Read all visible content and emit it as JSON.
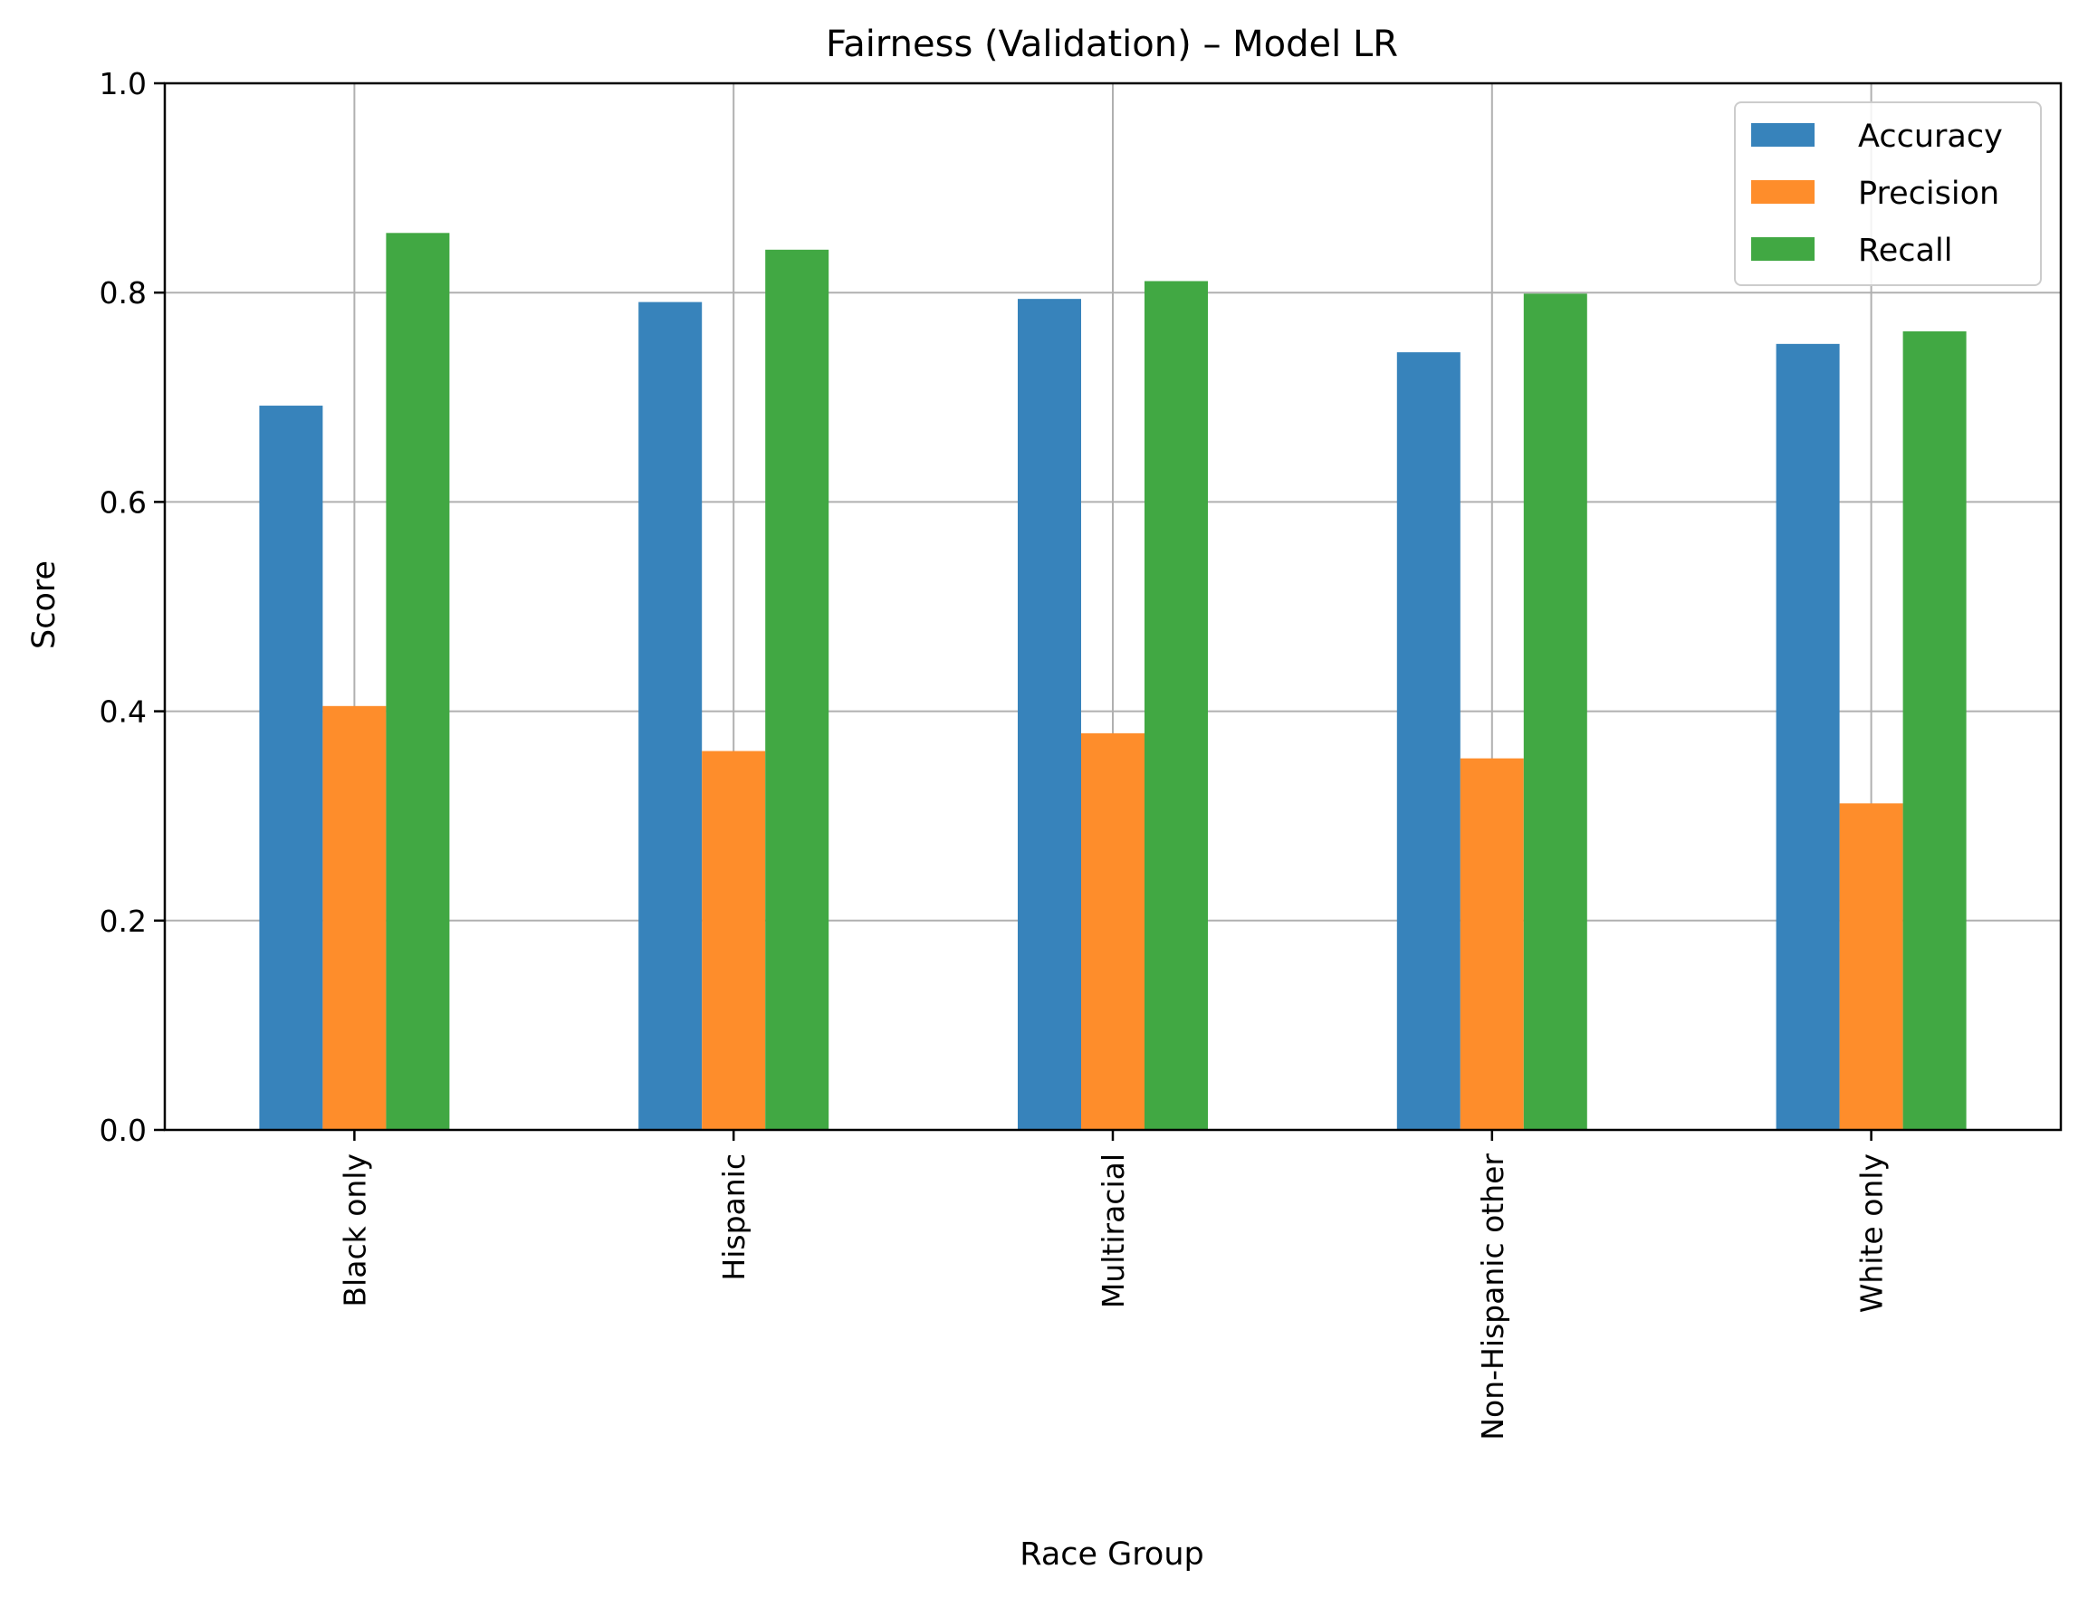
{
  "chart_data": {
    "type": "bar",
    "title": "Fairness (Validation) – Model LR",
    "xlabel": "Race Group",
    "ylabel": "Score",
    "ylim": [
      0,
      1.0
    ],
    "yticks": [
      "0.0",
      "0.2",
      "0.4",
      "0.6",
      "0.8",
      "1.0"
    ],
    "grid": true,
    "legend_position": "top-right",
    "categories": [
      "Black only",
      "Hispanic",
      "Multiracial",
      "Non-Hispanic other",
      "White only"
    ],
    "series": [
      {
        "name": "Accuracy",
        "color": "#3783bb",
        "values": [
          0.692,
          0.791,
          0.794,
          0.743,
          0.751
        ]
      },
      {
        "name": "Precision",
        "color": "#fe8d2b",
        "values": [
          0.405,
          0.362,
          0.379,
          0.355,
          0.312
        ]
      },
      {
        "name": "Recall",
        "color": "#41a843",
        "values": [
          0.857,
          0.841,
          0.811,
          0.799,
          0.763
        ]
      }
    ]
  }
}
